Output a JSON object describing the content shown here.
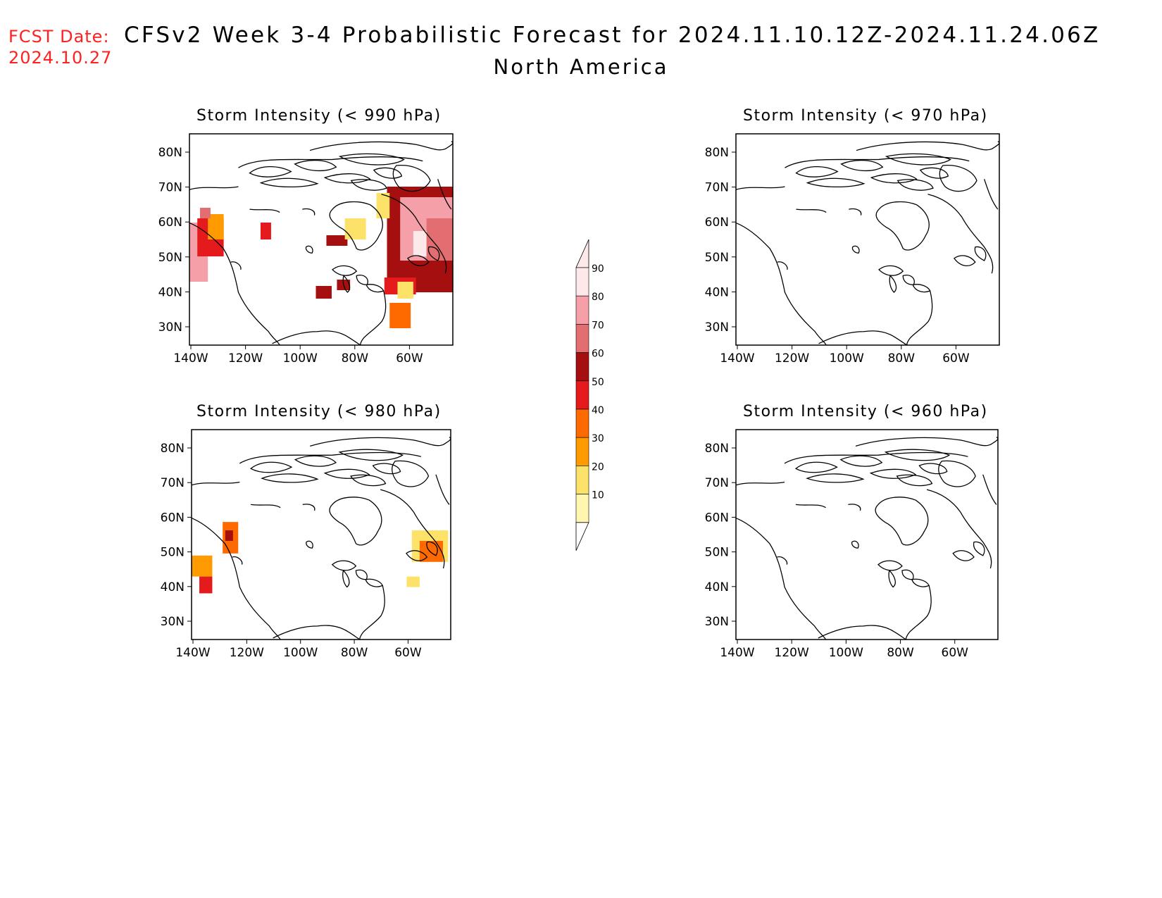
{
  "header": {
    "fcst_label": "FCST Date:",
    "fcst_date": "2024.10.27",
    "title": "CFSv2 Week 3-4 Probabilistic Forecast for 2024.11.10.12Z-2024.11.24.06Z",
    "subtitle": "North America"
  },
  "axes": {
    "lat_ticks": [
      "80N",
      "70N",
      "60N",
      "50N",
      "40N",
      "30N"
    ],
    "lon_ticks": [
      "140W",
      "120W",
      "100W",
      "80W",
      "60W"
    ]
  },
  "panels": [
    {
      "id": "p990",
      "title": "Storm Intensity (< 990 hPa)",
      "threshold_hPa": 990,
      "shaded_regions": [
        {
          "region": "NE Pacific off British Columbia",
          "max_percent": 80
        },
        {
          "region": "Eastern Canada / Labrador / Gulf of St. Lawrence",
          "max_percent": 90
        },
        {
          "region": "Hudson Bay / James Bay",
          "max_percent": 50
        },
        {
          "region": "Great Lakes / Ohio Valley",
          "max_percent": 50
        },
        {
          "region": "Western Atlantic off US East Coast",
          "max_percent": 40
        }
      ]
    },
    {
      "id": "p970",
      "title": "Storm Intensity (< 970 hPa)",
      "threshold_hPa": 970,
      "shaded_regions": []
    },
    {
      "id": "p980",
      "title": "Storm Intensity (< 980 hPa)",
      "threshold_hPa": 980,
      "shaded_regions": [
        {
          "region": "Coastal British Columbia",
          "max_percent": 50
        },
        {
          "region": "Maritimes / Gulf of St. Lawrence",
          "max_percent": 40
        }
      ]
    },
    {
      "id": "p960",
      "title": "Storm Intensity (< 960 hPa)",
      "threshold_hPa": 960,
      "shaded_regions": []
    }
  ],
  "colorbar": {
    "labels": [
      "90",
      "80",
      "70",
      "60",
      "50",
      "40",
      "30",
      "20",
      "10"
    ],
    "colors": [
      "#fde8ea",
      "#f5a0a8",
      "#e26e72",
      "#a50f0f",
      "#e41a1c",
      "#ff6a00",
      "#ff9b00",
      "#fde26a",
      "#fff6b0"
    ]
  }
}
